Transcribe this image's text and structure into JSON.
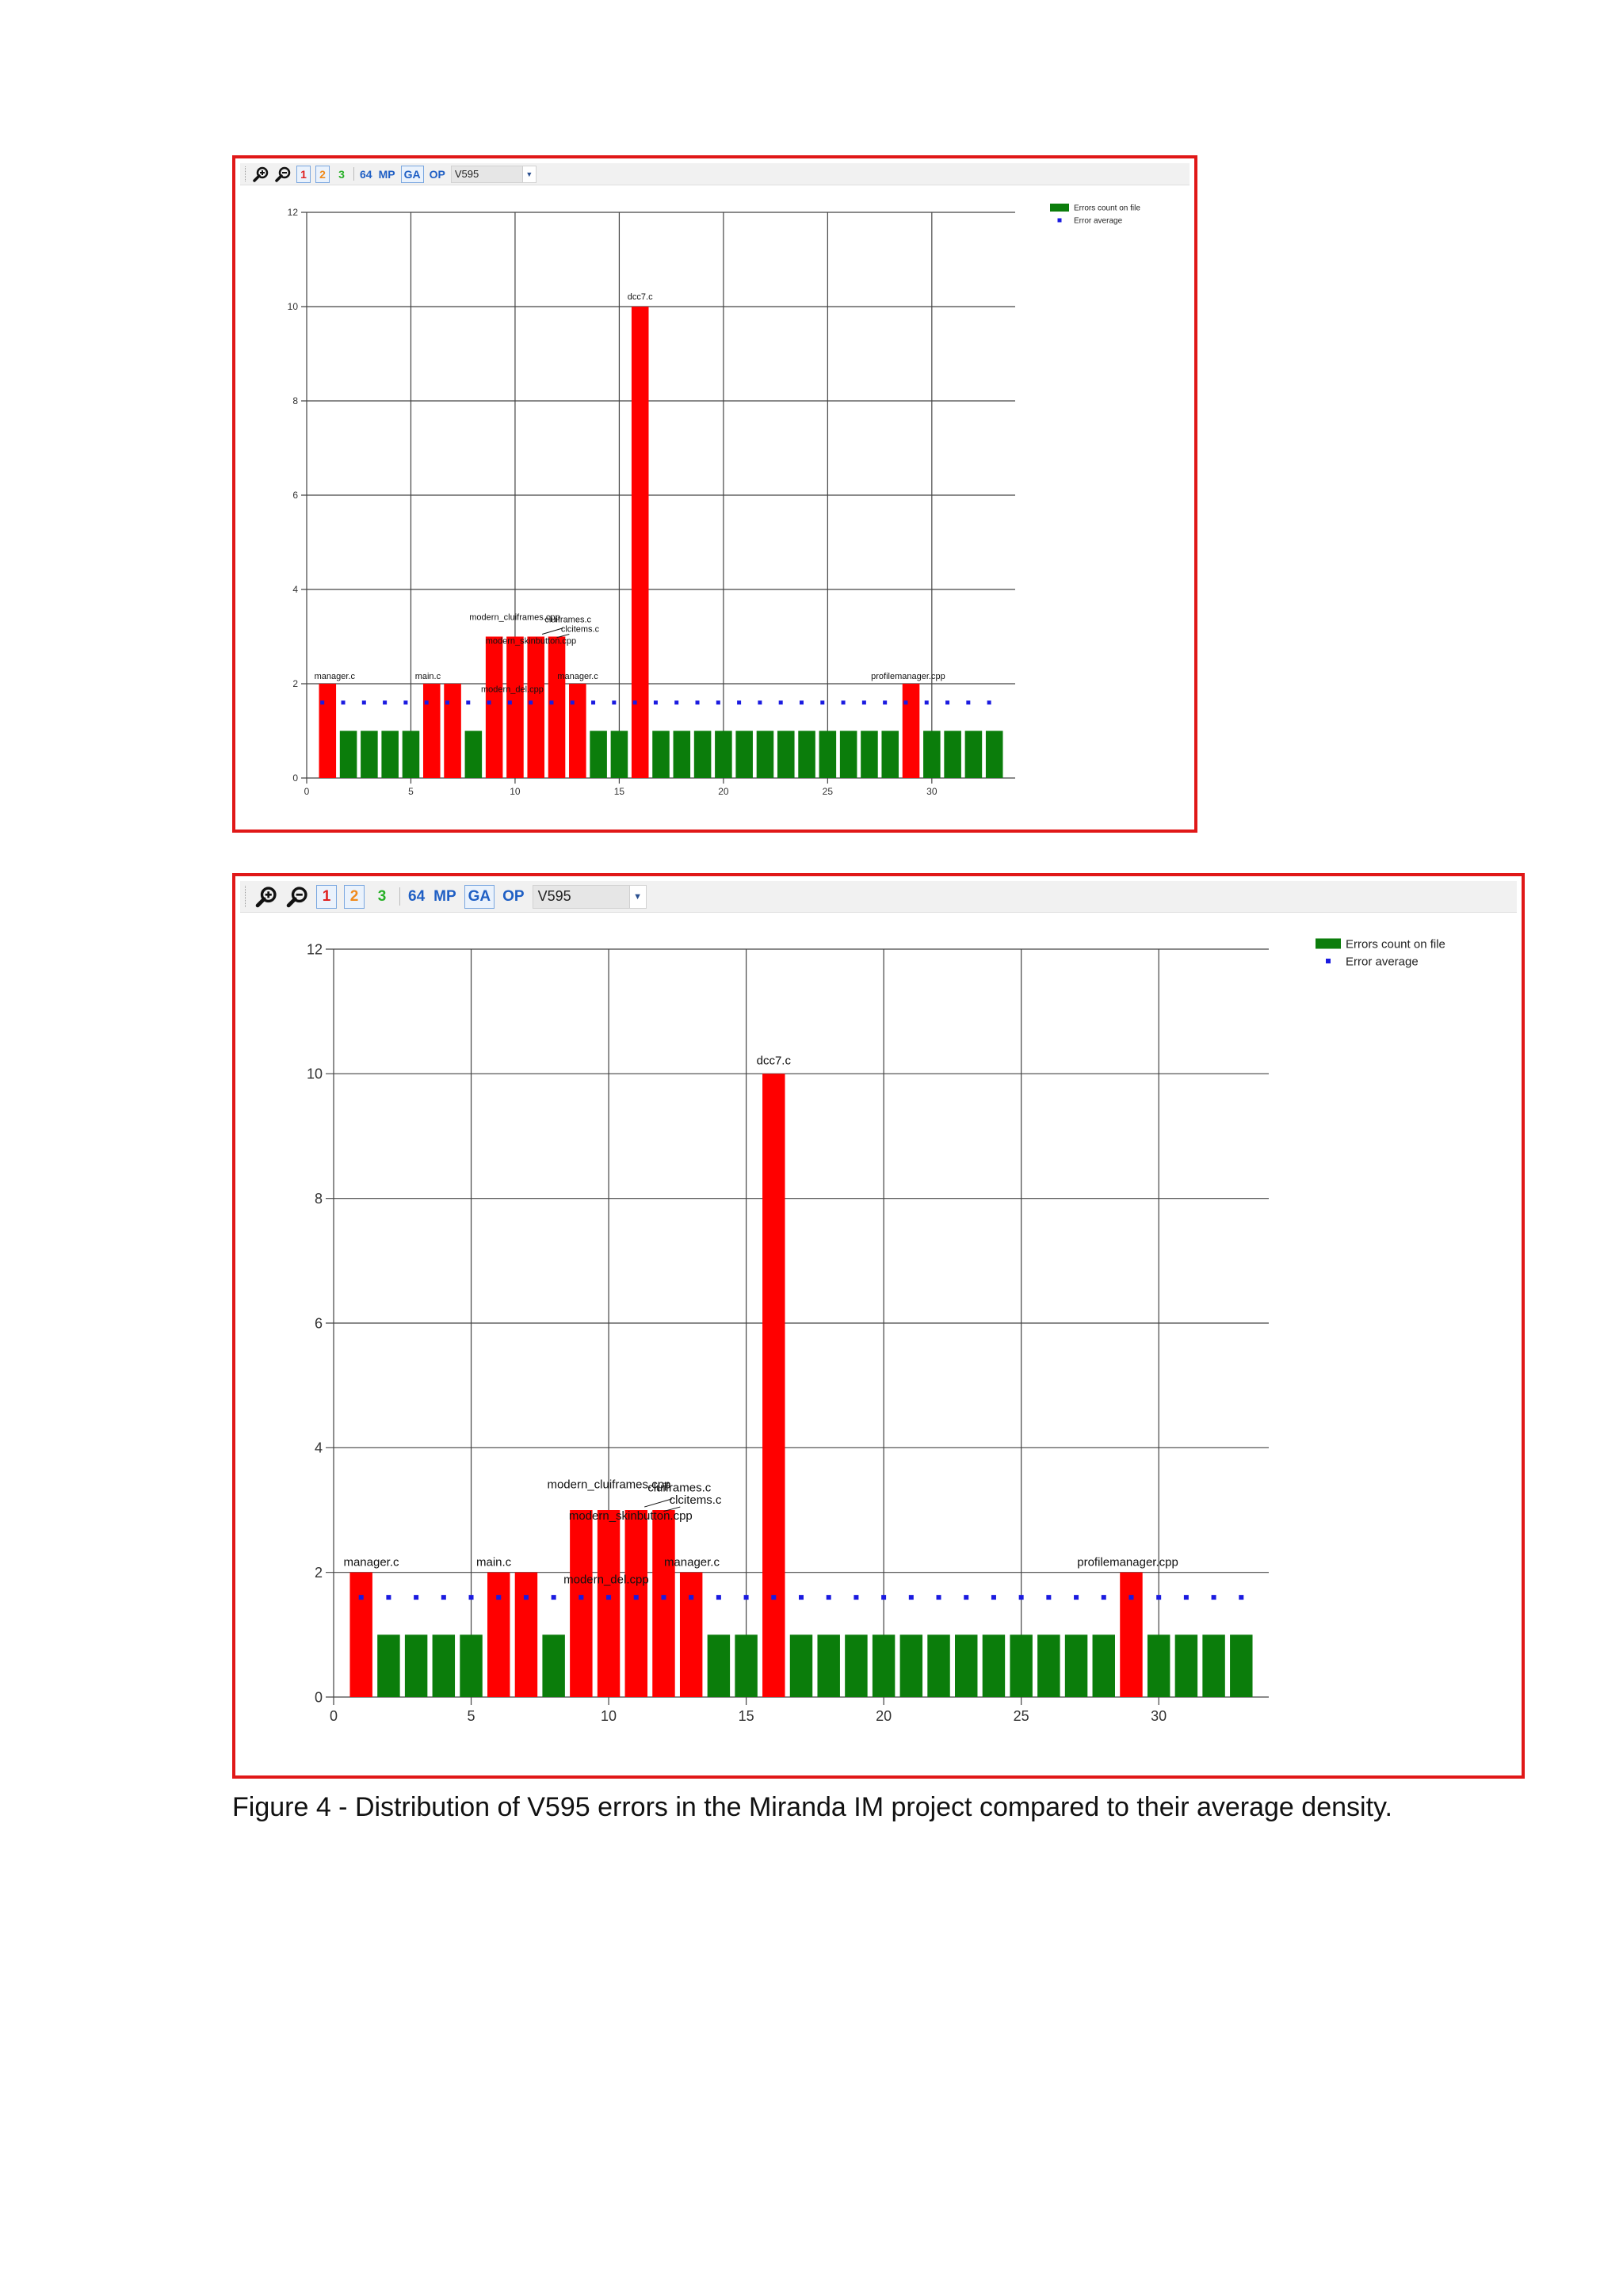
{
  "toolbar": {
    "zoom_in_icon": "zoom-in-icon",
    "zoom_out_icon": "zoom-out-icon",
    "level1_label": "1",
    "level2_label": "2",
    "level3_label": "3",
    "b64_label": "64",
    "mp_label": "MP",
    "ga_label": "GA",
    "op_label": "OP",
    "filter_value": "V595",
    "colors": {
      "level1": "#e02020",
      "level2": "#f08a1c",
      "level3": "#27b027",
      "category": "#1f5fc4"
    }
  },
  "chart_data": [
    {
      "type": "bar",
      "x": [
        1,
        2,
        3,
        4,
        5,
        6,
        7,
        8,
        9,
        10,
        11,
        12,
        13,
        14,
        15,
        16,
        17,
        18,
        19,
        20,
        21,
        22,
        23,
        24,
        25,
        26,
        27,
        28,
        29,
        30,
        31,
        32,
        33
      ],
      "values": [
        2,
        1,
        1,
        1,
        1,
        2,
        2,
        1,
        3,
        3,
        3,
        3,
        2,
        1,
        1,
        10,
        1,
        1,
        1,
        1,
        1,
        1,
        1,
        1,
        1,
        1,
        1,
        1,
        2,
        1,
        1,
        1,
        1
      ],
      "bar_colors": [
        "red",
        "green",
        "green",
        "green",
        "green",
        "red",
        "red",
        "green",
        "red",
        "red",
        "red",
        "red",
        "red",
        "green",
        "green",
        "red",
        "green",
        "green",
        "green",
        "green",
        "green",
        "green",
        "green",
        "green",
        "green",
        "green",
        "green",
        "green",
        "red",
        "green",
        "green",
        "green",
        "green"
      ],
      "average": 1.6,
      "xlim": [
        0,
        34
      ],
      "ylim": [
        0,
        12
      ],
      "xticks": [
        0,
        5,
        10,
        15,
        20,
        25,
        30
      ],
      "yticks": [
        0,
        2,
        4,
        6,
        8,
        10,
        12
      ],
      "grid": true,
      "legend_position": "top-right",
      "legend": [
        {
          "label": "Errors count on file",
          "color": "#0b7d0b",
          "marker": "box"
        },
        {
          "label": "Error average",
          "color": "#1a1ae0",
          "marker": "dot"
        }
      ],
      "annotations": [
        {
          "text": "manager.c",
          "x": 1,
          "y": 2
        },
        {
          "text": "main.c",
          "x": 6,
          "y": 2
        },
        {
          "text": "modern_del.cpp",
          "x": 9,
          "y": 1.7
        },
        {
          "text": "modern_cluiframes.cpp",
          "x": 9.5,
          "y": 3.3
        },
        {
          "text": "cluiframes.c",
          "x": 12,
          "y": 3.3
        },
        {
          "text": "clcitems.c",
          "x": 12.5,
          "y": 3.1
        },
        {
          "text": "modern_skinbutton.cpp",
          "x": 10,
          "y": 2.9
        },
        {
          "text": "manager.c",
          "x": 13,
          "y": 2
        },
        {
          "text": "dcc7.c",
          "x": 16,
          "y": 10
        },
        {
          "text": "profilemanager.cpp",
          "x": 29,
          "y": 2
        }
      ],
      "colors": {
        "error_bar": "#ff0000",
        "normal_bar": "#0b7d0b",
        "average_dot": "#1a1ae0"
      }
    },
    {
      "type": "bar",
      "x": [
        1,
        2,
        3,
        4,
        5,
        6,
        7,
        8,
        9,
        10,
        11,
        12,
        13,
        14,
        15,
        16,
        17,
        18,
        19,
        20,
        21,
        22,
        23,
        24,
        25,
        26,
        27,
        28,
        29,
        30,
        31,
        32,
        33
      ],
      "values": [
        2,
        1,
        1,
        1,
        1,
        2,
        2,
        1,
        3,
        3,
        3,
        3,
        2,
        1,
        1,
        10,
        1,
        1,
        1,
        1,
        1,
        1,
        1,
        1,
        1,
        1,
        1,
        1,
        2,
        1,
        1,
        1,
        1
      ],
      "bar_colors": [
        "red",
        "green",
        "green",
        "green",
        "green",
        "red",
        "red",
        "green",
        "red",
        "red",
        "red",
        "red",
        "red",
        "green",
        "green",
        "red",
        "green",
        "green",
        "green",
        "green",
        "green",
        "green",
        "green",
        "green",
        "green",
        "green",
        "green",
        "green",
        "red",
        "green",
        "green",
        "green",
        "green"
      ],
      "average": 1.6,
      "xlim": [
        0,
        34
      ],
      "ylim": [
        0,
        12
      ],
      "xticks": [
        0,
        5,
        10,
        15,
        20,
        25,
        30
      ],
      "yticks": [
        0,
        2,
        4,
        6,
        8,
        10,
        12
      ],
      "grid": true,
      "legend_position": "top-right",
      "legend": [
        {
          "label": "Errors count on file",
          "color": "#0b7d0b",
          "marker": "box"
        },
        {
          "label": "Error average",
          "color": "#1a1ae0",
          "marker": "dot"
        }
      ],
      "annotations": [
        {
          "text": "manager.c",
          "x": 1,
          "y": 2
        },
        {
          "text": "main.c",
          "x": 6,
          "y": 2
        },
        {
          "text": "modern_del.cpp",
          "x": 9,
          "y": 1.7
        },
        {
          "text": "modern_cluiframes.cpp",
          "x": 9.5,
          "y": 3.3
        },
        {
          "text": "cluiframes.c",
          "x": 12,
          "y": 3.3
        },
        {
          "text": "clcitems.c",
          "x": 12.5,
          "y": 3.1
        },
        {
          "text": "modern_skinbutton.cpp",
          "x": 10,
          "y": 2.9
        },
        {
          "text": "manager.c",
          "x": 13,
          "y": 2
        },
        {
          "text": "dcc7.c",
          "x": 16,
          "y": 10
        },
        {
          "text": "profilemanager.cpp",
          "x": 29,
          "y": 2
        }
      ],
      "colors": {
        "error_bar": "#ff0000",
        "normal_bar": "#0b7d0b",
        "average_dot": "#1a1ae0"
      }
    }
  ],
  "caption": "Figure 4 - Distribution of V595 errors in the Miranda IM project compared to their average density."
}
